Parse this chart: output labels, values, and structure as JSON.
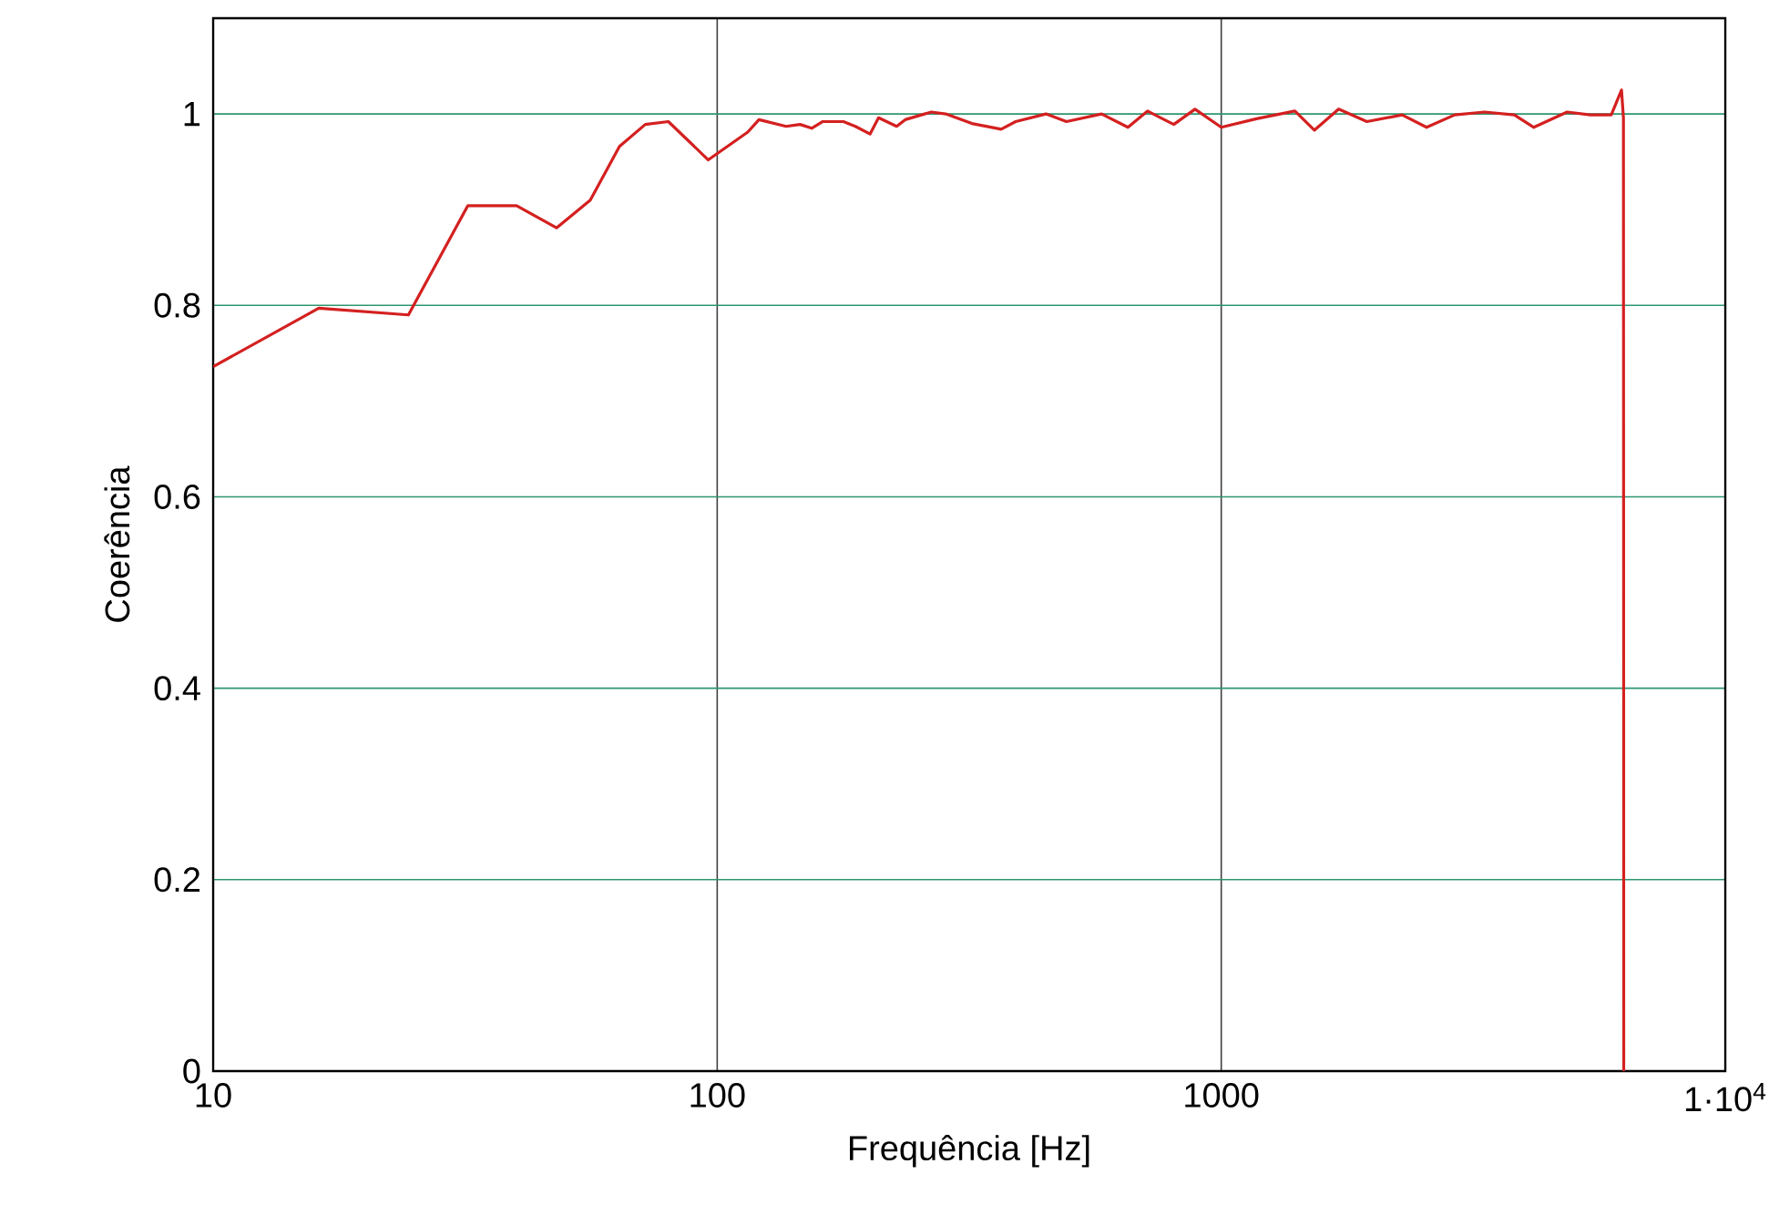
{
  "chart_data": {
    "type": "line",
    "xlabel": "Frequência [Hz]",
    "ylabel": "Coerência",
    "log": "x",
    "grid": true,
    "marker": "none",
    "line_style": "solid",
    "xlim": [
      10,
      10000
    ],
    "ylim": [
      0,
      1.1
    ],
    "xticks": [
      10,
      100,
      1000,
      {
        "value": 10000,
        "label": "1·10$^{4}$"
      }
    ],
    "yticks": [
      0,
      0.2,
      0.4,
      0.6,
      0.8,
      1
    ],
    "series": [
      {
        "color": "#d42020",
        "x": [
          10,
          16.2,
          24.4,
          32,
          40,
          48,
          56,
          64,
          72,
          80,
          96,
          115,
          121,
          137,
          146,
          154,
          162,
          178,
          188,
          201,
          209,
          227,
          236,
          266,
          284,
          320,
          366,
          391,
          449,
          493,
          579,
          653,
          714,
          805,
          887,
          1000,
          1175,
          1400,
          1530,
          1710,
          1945,
          2285,
          2555,
          2905,
          3330,
          3815,
          4170,
          4855,
          5395,
          5940,
          6225,
          6280,
          6290
        ],
        "values": [
          0.736,
          0.797,
          0.79,
          0.904,
          0.904,
          0.881,
          0.91,
          0.966,
          0.989,
          0.992,
          0.952,
          0.981,
          0.994,
          0.987,
          0.989,
          0.985,
          0.992,
          0.992,
          0.987,
          0.979,
          0.996,
          0.987,
          0.994,
          1.002,
          1.0,
          0.99,
          0.984,
          0.992,
          1.0,
          0.992,
          1.0,
          0.986,
          1.003,
          0.989,
          1.005,
          0.986,
          0.995,
          1.003,
          0.983,
          1.005,
          0.992,
          0.999,
          0.986,
          0.999,
          1.002,
          0.999,
          0.986,
          1.002,
          0.999,
          0.999,
          1.025,
          0.996,
          0
        ]
      }
    ]
  }
}
